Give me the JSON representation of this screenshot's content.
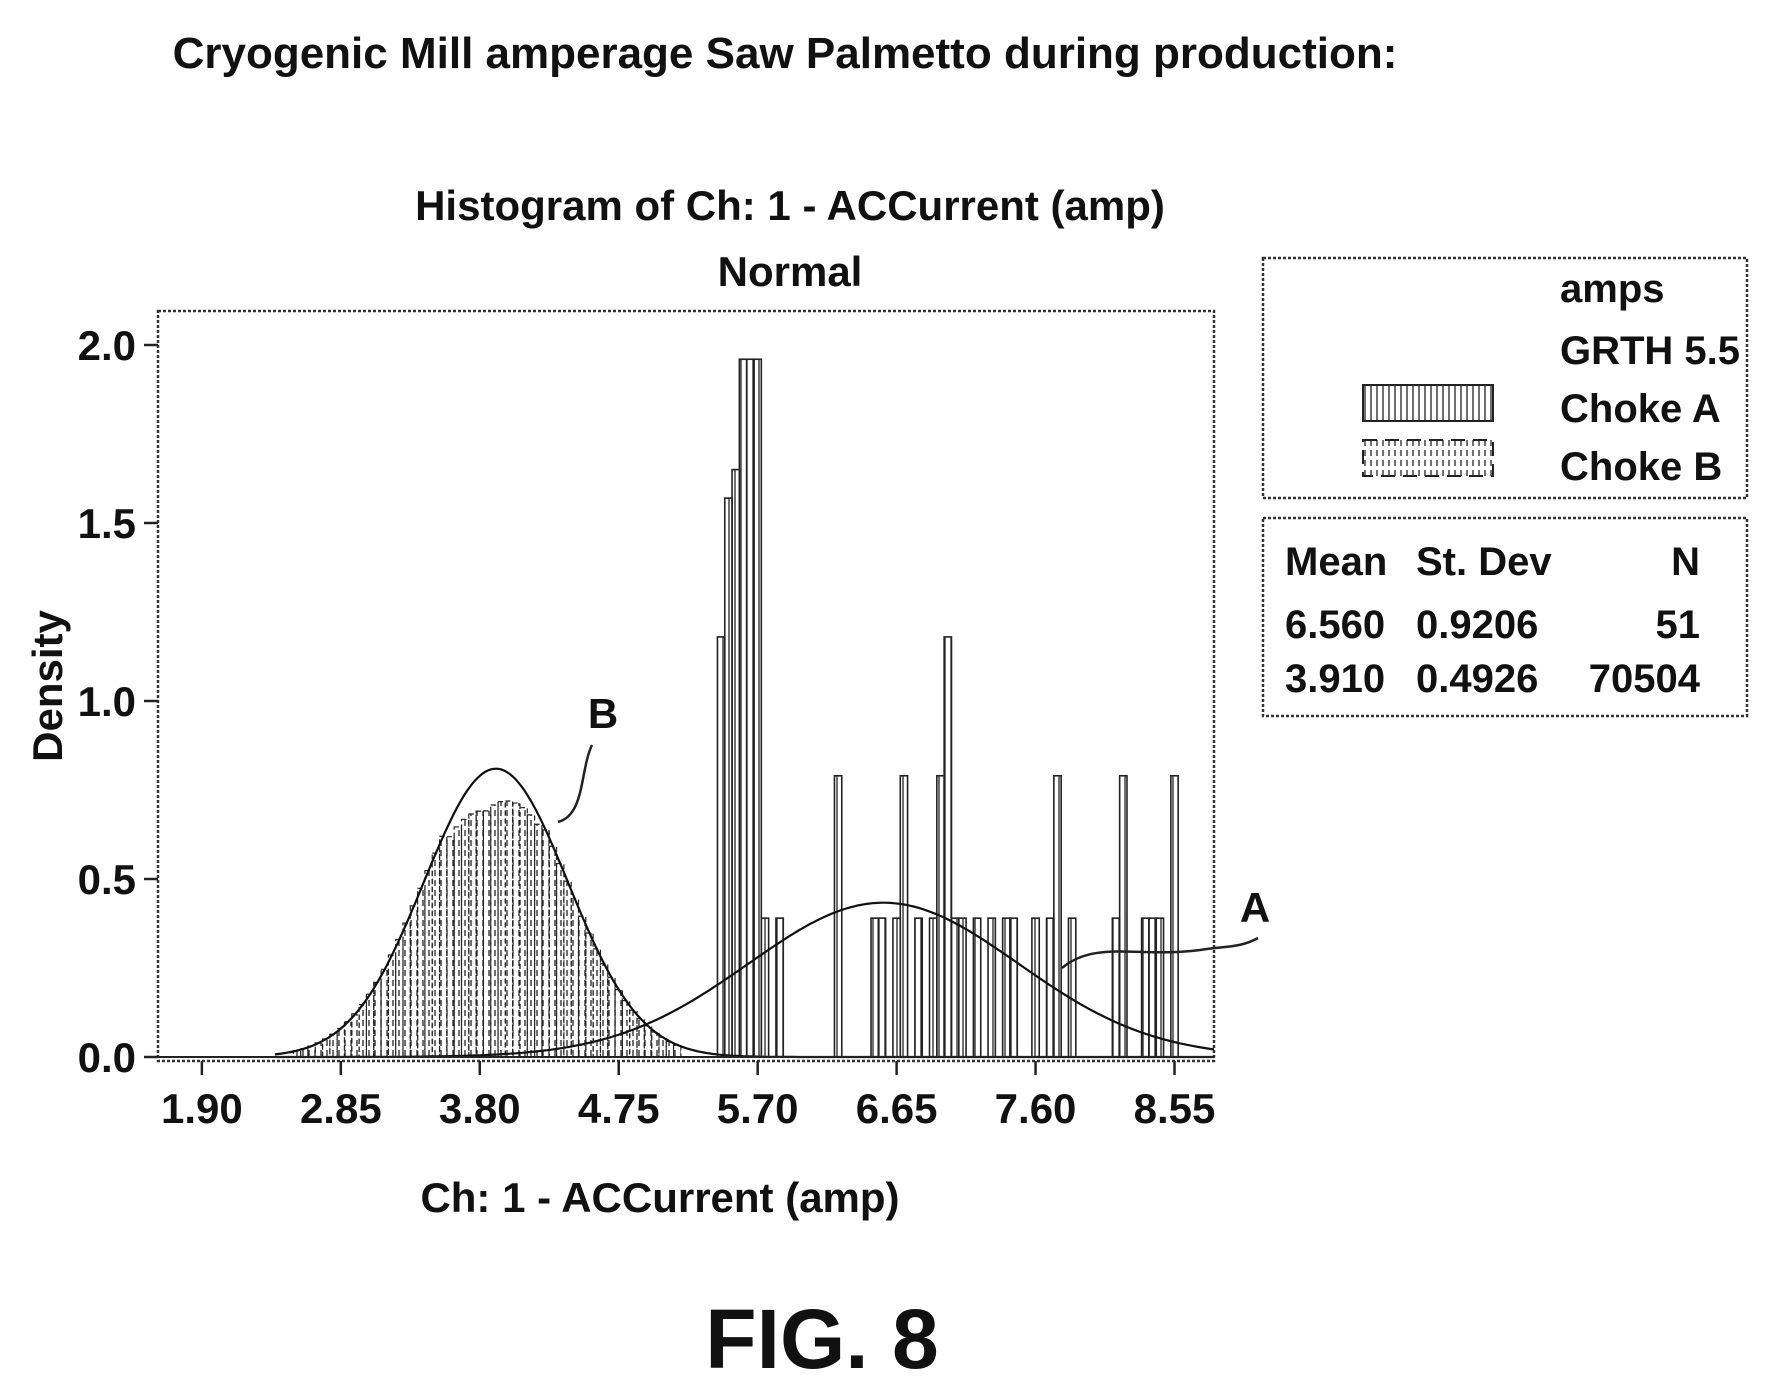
{
  "page": {
    "header": "Cryogenic Mill amperage Saw Palmetto during production:",
    "figure_label": "FIG. 8"
  },
  "chart_data": {
    "type": "bar",
    "title": "Histogram of Ch: 1 - ACCurrent (amp)",
    "subtitle": "Normal",
    "xlabel": "Ch: 1 - ACCurrent (amp)",
    "ylabel": "Density",
    "xlim": [
      1.6,
      8.82
    ],
    "ylim": [
      0,
      2.1
    ],
    "x_ticks": [
      1.9,
      2.85,
      3.8,
      4.75,
      5.7,
      6.65,
      7.6,
      8.55
    ],
    "x_tick_labels": [
      "1.90",
      "2.85",
      "3.80",
      "4.75",
      "5.70",
      "6.65",
      "7.60",
      "8.55"
    ],
    "y_ticks": [
      0.0,
      0.5,
      1.0,
      1.5,
      2.0
    ],
    "y_tick_labels": [
      "0.0",
      "0.5",
      "1.0",
      "1.5",
      "2.0"
    ],
    "grid": false,
    "legend": {
      "placement": "right",
      "heading": [
        "amps",
        "GRTH 5.5"
      ],
      "entries": [
        {
          "name": "Choke A",
          "style": "solid"
        },
        {
          "name": "Choke B",
          "style": "dashed"
        }
      ]
    },
    "stats_table": {
      "headers": [
        "Mean",
        "St. Dev",
        "N"
      ],
      "rows": [
        [
          "6.560",
          "0.9206",
          "51"
        ],
        [
          "3.910",
          "0.4926",
          "70504"
        ]
      ]
    },
    "annotations": [
      {
        "text": "A",
        "points_to": "Choke A fitted curve"
      },
      {
        "text": "B",
        "points_to": "Choke B fitted curve"
      }
    ],
    "series": [
      {
        "name": "Choke A",
        "style": "solid",
        "bin_width": 0.05,
        "bins": [
          {
            "x": 5.45,
            "y": 1.18
          },
          {
            "x": 5.5,
            "y": 1.57
          },
          {
            "x": 5.55,
            "y": 1.65
          },
          {
            "x": 5.6,
            "y": 1.96
          },
          {
            "x": 5.65,
            "y": 1.96
          },
          {
            "x": 5.7,
            "y": 1.96
          },
          {
            "x": 5.75,
            "y": 0.39
          },
          {
            "x": 5.85,
            "y": 0.39
          },
          {
            "x": 6.25,
            "y": 0.79
          },
          {
            "x": 6.5,
            "y": 0.39
          },
          {
            "x": 6.55,
            "y": 0.39
          },
          {
            "x": 6.65,
            "y": 0.39
          },
          {
            "x": 6.7,
            "y": 0.79
          },
          {
            "x": 6.8,
            "y": 0.39
          },
          {
            "x": 6.9,
            "y": 0.39
          },
          {
            "x": 6.95,
            "y": 0.79
          },
          {
            "x": 7.0,
            "y": 1.18
          },
          {
            "x": 7.05,
            "y": 0.39
          },
          {
            "x": 7.1,
            "y": 0.39
          },
          {
            "x": 7.2,
            "y": 0.39
          },
          {
            "x": 7.3,
            "y": 0.39
          },
          {
            "x": 7.4,
            "y": 0.39
          },
          {
            "x": 7.45,
            "y": 0.39
          },
          {
            "x": 7.6,
            "y": 0.39
          },
          {
            "x": 7.7,
            "y": 0.39
          },
          {
            "x": 7.75,
            "y": 0.79
          },
          {
            "x": 7.85,
            "y": 0.39
          },
          {
            "x": 8.15,
            "y": 0.39
          },
          {
            "x": 8.2,
            "y": 0.79
          },
          {
            "x": 8.35,
            "y": 0.39
          },
          {
            "x": 8.4,
            "y": 0.39
          },
          {
            "x": 8.45,
            "y": 0.39
          },
          {
            "x": 8.55,
            "y": 0.79
          }
        ],
        "fit": {
          "distribution": "normal",
          "mean": 6.56,
          "sd": 0.9206
        }
      },
      {
        "name": "Choke B",
        "style": "dashed",
        "bin_width": 0.05,
        "bins_from_fit": true,
        "x_range": [
          2.55,
          5.15
        ],
        "fit": {
          "distribution": "normal",
          "mean": 3.91,
          "sd": 0.4926
        }
      }
    ]
  }
}
